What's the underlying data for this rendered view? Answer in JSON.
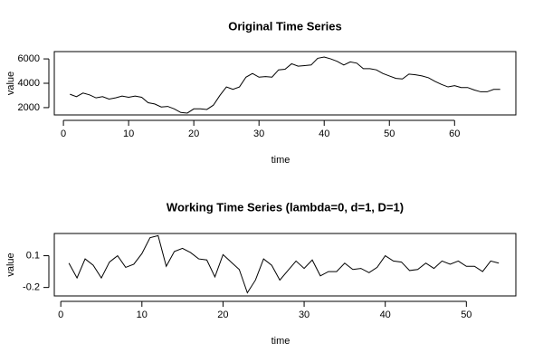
{
  "chart_data": [
    {
      "type": "line",
      "title": "Original Time Series",
      "x_label": "time",
      "y_label": "value",
      "x": [
        1,
        2,
        3,
        4,
        5,
        6,
        7,
        8,
        9,
        10,
        11,
        12,
        13,
        14,
        15,
        16,
        17,
        18,
        19,
        20,
        21,
        22,
        23,
        24,
        25,
        26,
        27,
        28,
        29,
        30,
        31,
        32,
        33,
        34,
        35,
        36,
        37,
        38,
        39,
        40,
        41,
        42,
        43,
        44,
        45,
        46,
        47,
        48,
        49,
        50,
        51,
        52,
        53,
        54,
        55,
        56,
        57,
        58,
        59,
        60,
        61,
        62,
        63,
        64,
        65,
        66,
        67
      ],
      "values": [
        3100,
        2900,
        3200,
        3050,
        2800,
        2900,
        2700,
        2800,
        2950,
        2850,
        2950,
        2850,
        2400,
        2300,
        2050,
        2100,
        1900,
        1600,
        1550,
        1900,
        1900,
        1850,
        2200,
        3000,
        3700,
        3500,
        3700,
        4500,
        4800,
        4500,
        4550,
        4500,
        5100,
        5150,
        5600,
        5400,
        5450,
        5500,
        6050,
        6150,
        6000,
        5800,
        5500,
        5750,
        5650,
        5200,
        5200,
        5100,
        4800,
        4600,
        4400,
        4350,
        4750,
        4700,
        4600,
        4450,
        4150,
        3900,
        3700,
        3800,
        3650,
        3650,
        3450,
        3300,
        3300,
        3500,
        3500
      ],
      "color": "#000000",
      "xlim": [
        -1.4,
        69.4
      ],
      "xticks": [
        0,
        10,
        20,
        30,
        40,
        50,
        60
      ],
      "ylim": [
        1400,
        6600
      ],
      "yticks": [
        2000,
        4000,
        6000
      ]
    },
    {
      "type": "line",
      "title": "Working Time Series (lambda=0, d=1, D=1)",
      "x_label": "time",
      "y_label": "value",
      "x": [
        1,
        2,
        3,
        4,
        5,
        6,
        7,
        8,
        9,
        10,
        11,
        12,
        13,
        14,
        15,
        16,
        17,
        18,
        19,
        20,
        21,
        22,
        23,
        24,
        25,
        26,
        27,
        28,
        29,
        30,
        31,
        32,
        33,
        34,
        35,
        36,
        37,
        38,
        39,
        40,
        41,
        42,
        43,
        44,
        45,
        46,
        47,
        48,
        49,
        50,
        51,
        52,
        53,
        54
      ],
      "values": [
        0.03,
        -0.11,
        0.07,
        0.01,
        -0.11,
        0.04,
        0.1,
        -0.01,
        0.02,
        0.12,
        0.27,
        0.29,
        0.0,
        0.14,
        0.17,
        0.13,
        0.07,
        0.06,
        -0.1,
        0.11,
        0.04,
        -0.03,
        -0.25,
        -0.13,
        0.07,
        0.01,
        -0.13,
        -0.04,
        0.05,
        -0.02,
        0.06,
        -0.09,
        -0.05,
        -0.05,
        0.03,
        -0.03,
        -0.02,
        -0.06,
        -0.01,
        0.1,
        0.05,
        0.04,
        -0.04,
        -0.03,
        0.03,
        -0.02,
        0.05,
        0.02,
        0.05,
        0.0,
        0.0,
        -0.05,
        0.05,
        0.03
      ],
      "color": "#000000",
      "xlim": [
        -0.8,
        56.1
      ],
      "xticks": [
        0,
        10,
        20,
        30,
        40,
        50
      ],
      "ylim": [
        -0.28,
        0.31
      ],
      "yticks": [
        -0.2,
        0.1
      ]
    }
  ]
}
